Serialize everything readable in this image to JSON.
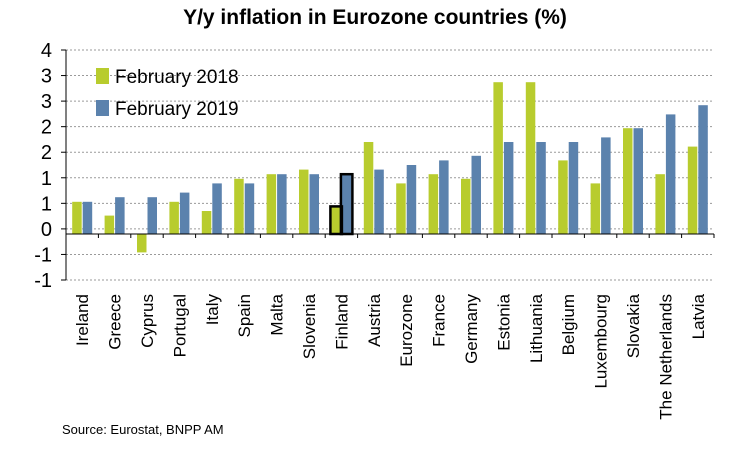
{
  "chart_data": {
    "type": "bar",
    "title": "Y/y inflation in Eurozone countries (%)",
    "source": "Source: Eurostat, BNPP AM",
    "categories": [
      "Ireland",
      "Greece",
      "Cyprus",
      "Portugal",
      "Italy",
      "Spain",
      "Malta",
      "Slovenia",
      "Finland",
      "Austria",
      "Eurozone",
      "France",
      "Germany",
      "Estonia",
      "Lithuania",
      "Belgium",
      "Luxembourg",
      "Slovakia",
      "The Netherlands",
      "Latvia"
    ],
    "series": [
      {
        "name": "February 2018",
        "color": "#b8cc2e",
        "values": [
          0.7,
          0.4,
          -0.4,
          0.7,
          0.5,
          1.2,
          1.3,
          1.4,
          0.6,
          2.0,
          1.1,
          1.3,
          1.2,
          3.3,
          3.3,
          1.6,
          1.1,
          2.3,
          1.3,
          1.9
        ]
      },
      {
        "name": "February 2019",
        "color": "#5b82ad",
        "values": [
          0.7,
          0.8,
          0.8,
          0.9,
          1.1,
          1.1,
          1.3,
          1.3,
          1.3,
          1.4,
          1.5,
          1.6,
          1.7,
          2.0,
          2.0,
          2.0,
          2.1,
          2.3,
          2.6,
          2.8
        ]
      }
    ],
    "highlight": "Finland",
    "yticks": [
      "4",
      "3",
      "3",
      "2",
      "2",
      "1",
      "1",
      "0",
      "-1",
      "-1"
    ],
    "ylim": [
      -1,
      4
    ],
    "xlabel": "",
    "ylabel": "",
    "legend": "top-left",
    "grid": true
  }
}
